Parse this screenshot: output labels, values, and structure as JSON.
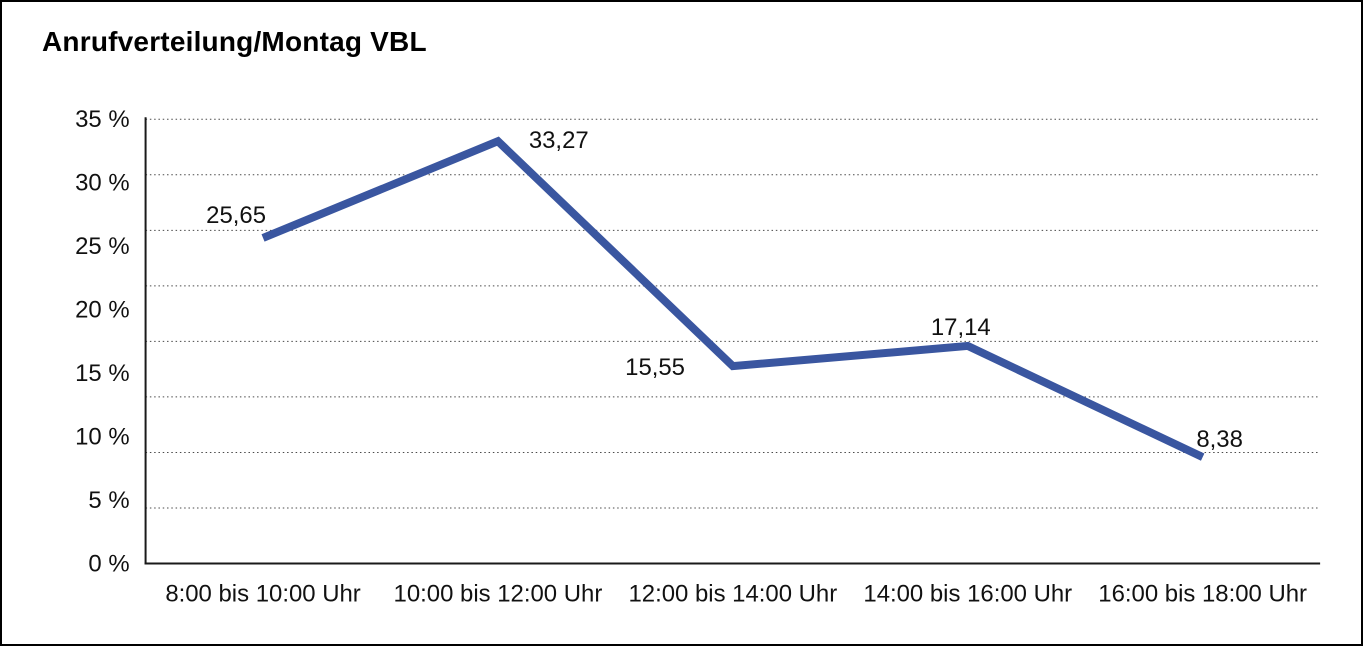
{
  "title": "Anrufverteilung/Montag VBL",
  "colors": {
    "line": "#3A56A0",
    "text": "#000000",
    "frame_border": "#000000",
    "background": "#FFFFFF"
  },
  "chart_data": {
    "type": "line",
    "title": "Anrufverteilung/Montag VBL",
    "categories": [
      "8:00 bis 10:00 Uhr",
      "10:00 bis 12:00 Uhr",
      "12:00 bis 14:00 Uhr",
      "14:00 bis 16:00 Uhr",
      "16:00 bis 18:00 Uhr"
    ],
    "values": [
      25.65,
      33.27,
      15.55,
      17.14,
      8.38
    ],
    "value_labels": [
      "25,65",
      "33,27",
      "15,55",
      "17,14",
      "8,38"
    ],
    "unit": "%",
    "xlabel": "",
    "ylabel": "",
    "ylim": [
      0,
      35
    ],
    "y_tick_labels": [
      "0 %",
      "5 %",
      "10 %",
      "15 %",
      "20 %",
      "25 %",
      "30 %",
      "35 %"
    ],
    "grid": "horizontal dotted",
    "grid_intervals": 8,
    "legend": "none",
    "line_color": "#3A56A0"
  }
}
